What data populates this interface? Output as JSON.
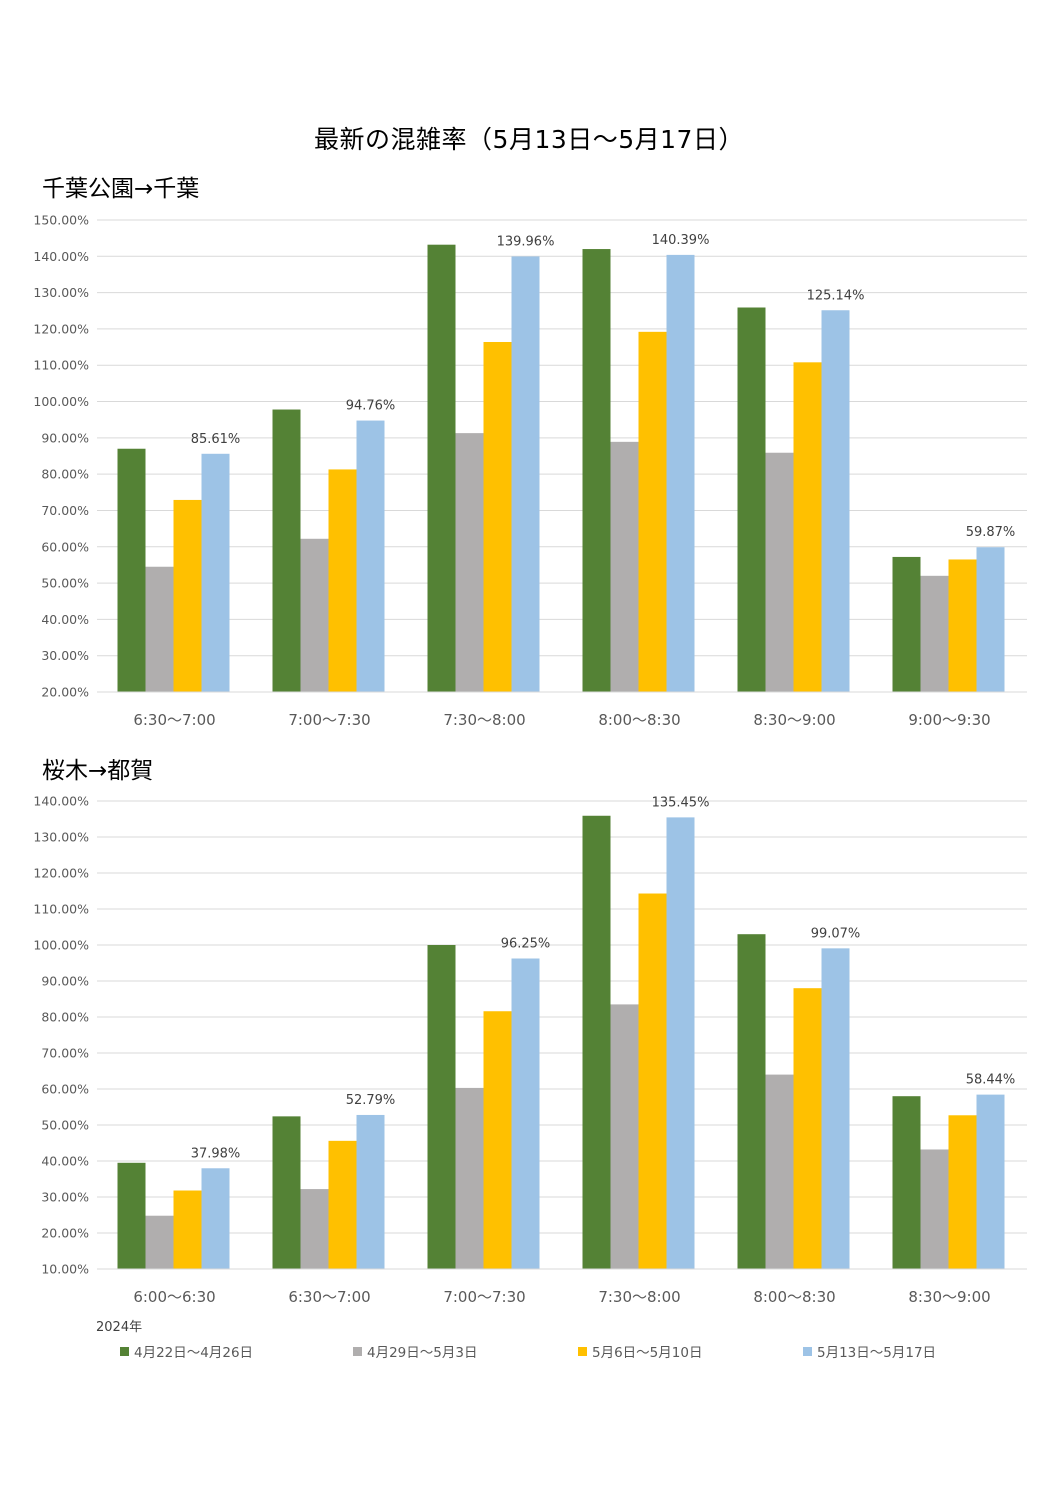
{
  "page_title": "最新の混雑率（5月13日～5月17日）",
  "legend": {
    "year": "2024年",
    "items": [
      {
        "name": "4月22日～4月26日",
        "color": "#548235"
      },
      {
        "name": "4月29日～5月3日",
        "color": "#b0aeae"
      },
      {
        "name": "5月6日～5月10日",
        "color": "#ffc000"
      },
      {
        "name": "5月13日～5月17日",
        "color": "#9dc3e6"
      }
    ]
  },
  "chart_data": [
    {
      "type": "bar",
      "title": "千葉公園→千葉",
      "categories": [
        "6:30～7:00",
        "7:00～7:30",
        "7:30～8:00",
        "8:00～8:30",
        "8:30～9:00",
        "9:00～9:30"
      ],
      "ylim": [
        20,
        150
      ],
      "ystep": 10,
      "ytick_labels": [
        "20.00%",
        "30.00%",
        "40.00%",
        "50.00%",
        "60.00%",
        "70.00%",
        "80.00%",
        "90.00%",
        "100.00%",
        "110.00%",
        "120.00%",
        "130.00%",
        "140.00%",
        "150.00%"
      ],
      "series": [
        {
          "name": "4月22日～4月26日",
          "values": [
            87.0,
            97.8,
            143.2,
            142.0,
            125.9,
            57.2
          ]
        },
        {
          "name": "4月29日～5月3日",
          "values": [
            54.5,
            62.2,
            91.3,
            88.9,
            85.9,
            52.0
          ]
        },
        {
          "name": "5月6日～5月10日",
          "values": [
            72.9,
            81.3,
            116.4,
            119.2,
            110.8,
            56.5
          ]
        },
        {
          "name": "5月13日～5月17日",
          "values": [
            85.61,
            94.76,
            139.96,
            140.39,
            125.14,
            59.87
          ]
        }
      ],
      "data_labels": [
        "85.61%",
        "94.76%",
        "139.96%",
        "140.39%",
        "125.14%",
        "59.87%"
      ]
    },
    {
      "type": "bar",
      "title": "桜木→都賀",
      "categories": [
        "6:00～6:30",
        "6:30～7:00",
        "7:00～7:30",
        "7:30～8:00",
        "8:00～8:30",
        "8:30～9:00"
      ],
      "ylim": [
        10,
        140
      ],
      "ystep": 10,
      "ytick_labels": [
        "10.00%",
        "20.00%",
        "30.00%",
        "40.00%",
        "50.00%",
        "60.00%",
        "70.00%",
        "80.00%",
        "90.00%",
        "100.00%",
        "110.00%",
        "120.00%",
        "130.00%",
        "140.00%"
      ],
      "series": [
        {
          "name": "4月22日～4月26日",
          "values": [
            39.5,
            52.4,
            100.0,
            135.9,
            103.0,
            58.0
          ]
        },
        {
          "name": "4月29日～5月3日",
          "values": [
            24.8,
            32.2,
            60.3,
            83.5,
            64.0,
            43.2
          ]
        },
        {
          "name": "5月6日～5月10日",
          "values": [
            31.8,
            45.6,
            81.6,
            114.3,
            88.0,
            52.7
          ]
        },
        {
          "name": "5月13日～5月17日",
          "values": [
            37.98,
            52.79,
            96.25,
            135.45,
            99.07,
            58.44
          ]
        }
      ],
      "data_labels": [
        "37.98%",
        "52.79%",
        "96.25%",
        "135.45%",
        "99.07%",
        "58.44%"
      ]
    }
  ]
}
